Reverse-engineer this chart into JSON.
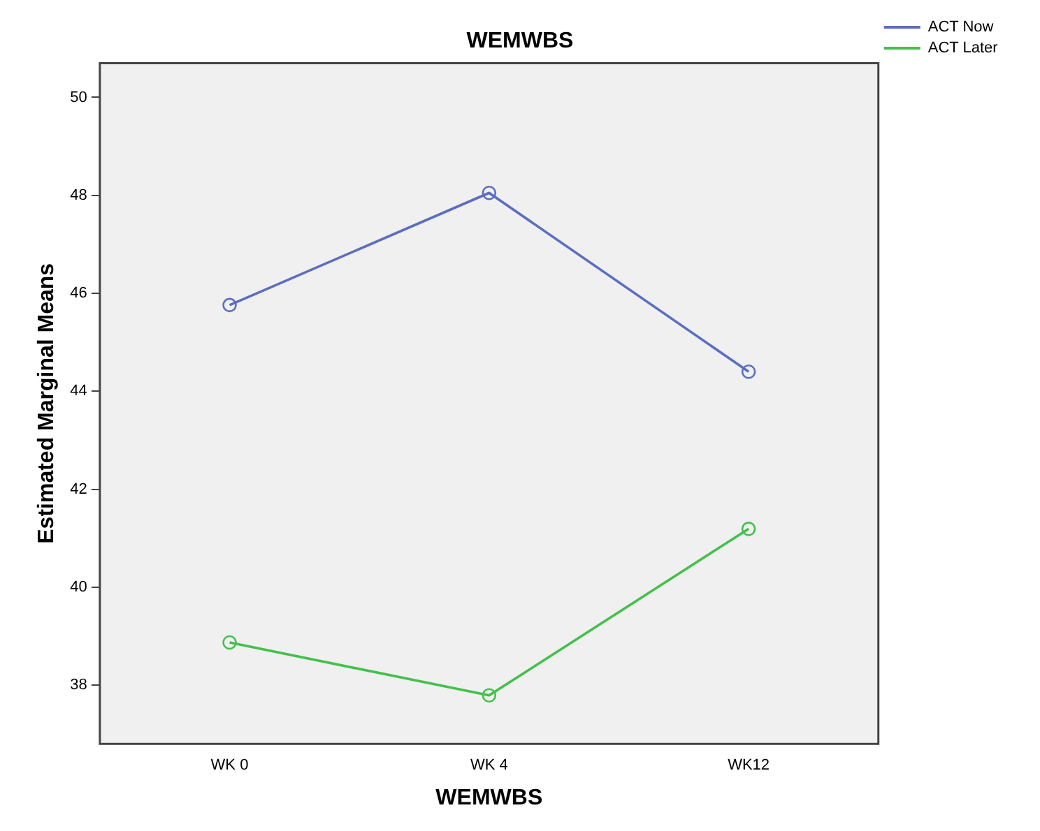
{
  "chart_data": {
    "type": "line",
    "title": "WEMWBS",
    "xlabel": "WEMWBS",
    "ylabel": "Estimated Marginal Means",
    "categories": [
      "WK 0",
      "WK 4",
      "WK12"
    ],
    "series": [
      {
        "name": "ACT Now",
        "color": "#5b6ebf",
        "values": [
          45.76,
          48.05,
          44.4
        ]
      },
      {
        "name": "ACT Later",
        "color": "#44c04c",
        "values": [
          38.87,
          37.79,
          41.19
        ]
      }
    ],
    "ylim": [
      36.8,
      50.7
    ],
    "yticks": [
      38,
      40,
      42,
      44,
      46,
      48,
      50
    ],
    "grid": false,
    "legend": "top right",
    "marker": "circle",
    "line_style": "solid"
  }
}
